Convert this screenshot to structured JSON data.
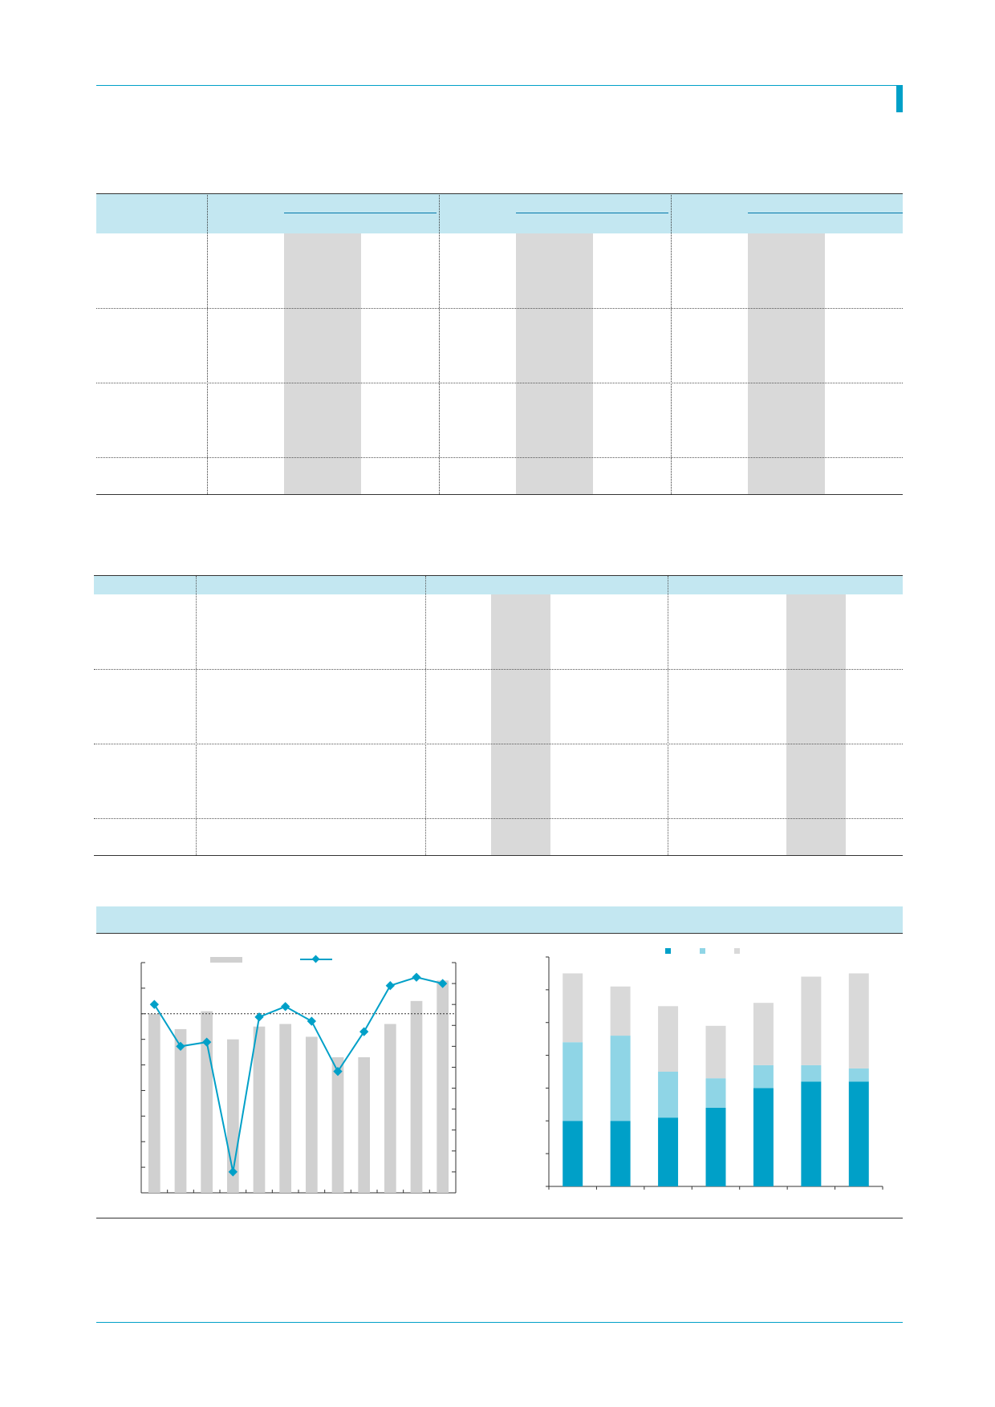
{
  "theme": {
    "accent": "#00a0c8",
    "light_accent": "#c3e7f1",
    "shade": "#d9d9d9",
    "mid_accent": "#8fd5e6"
  },
  "table1": {
    "group_count": 3,
    "sub_columns_per_group": 3,
    "row_count": 4,
    "shaded_sub_column": 2
  },
  "table2": {
    "row_count": 4
  },
  "chart_section": {
    "legend_icons": [
      "gray-bar-swatch",
      "accent-line-marker-swatch",
      "accent-square",
      "light-accent-square",
      "gray-square"
    ]
  },
  "chart_data": [
    {
      "type": "bar",
      "title": "",
      "categories": [
        "",
        "",
        "",
        "",
        "",
        "",
        "",
        "",
        "",
        "",
        "",
        ""
      ],
      "series": [
        {
          "type": "bar",
          "color": "#d0d0d0",
          "values": [
            7.0,
            6.4,
            7.1,
            6.0,
            6.5,
            6.6,
            6.1,
            5.3,
            5.3,
            6.6,
            7.5,
            8.3
          ]
        },
        {
          "type": "line",
          "color": "#00a0c8",
          "values": [
            7.5,
            5.5,
            5.7,
            -0.5,
            6.9,
            7.4,
            6.7,
            4.3,
            6.2,
            8.4,
            8.8,
            8.5
          ]
        }
      ],
      "left_ylim": [
        0,
        9
      ],
      "right_ylim": [
        -1.5,
        9.5
      ],
      "reference_line": 7.0
    },
    {
      "type": "bar",
      "title": "",
      "stacked": true,
      "categories": [
        "",
        "",
        "",
        "",
        "",
        "",
        ""
      ],
      "series": [
        {
          "color": "#00a0c8",
          "values": [
            2.0,
            2.0,
            2.1,
            2.4,
            3.0,
            3.2,
            3.2
          ]
        },
        {
          "color": "#8fd5e6",
          "values": [
            2.4,
            2.6,
            1.4,
            0.9,
            0.7,
            0.5,
            0.4
          ]
        },
        {
          "color": "#d9d9d9",
          "values": [
            2.1,
            1.5,
            2.0,
            1.6,
            1.9,
            2.7,
            2.9
          ]
        }
      ],
      "ylim": [
        0,
        7
      ]
    }
  ]
}
